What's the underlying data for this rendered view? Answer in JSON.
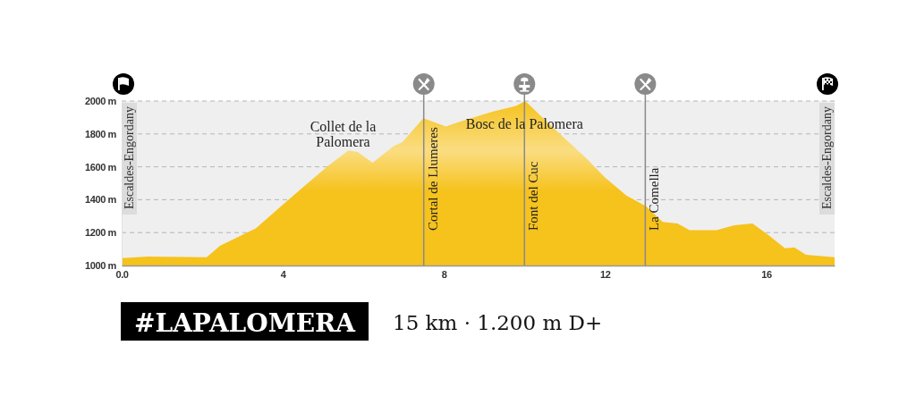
{
  "chart_data": {
    "type": "area",
    "x": [
      0,
      0.66,
      2.11,
      2.44,
      3.11,
      3.33,
      4.0,
      4.52,
      5.12,
      5.63,
      5.86,
      6.23,
      6.75,
      6.97,
      7.49,
      8.05,
      8.53,
      9.2,
      9.79,
      10.02,
      10.53,
      10.9,
      11.5,
      12.0,
      12.53,
      13.02,
      13.43,
      13.8,
      14.1,
      14.77,
      15.21,
      15.66,
      16.03,
      16.47,
      16.7,
      16.99,
      17.7
    ],
    "series": [
      {
        "color": "#f6c21c",
        "values": [
          1045,
          1055,
          1050,
          1120,
          1200,
          1225,
          1370,
          1480,
          1605,
          1700,
          1690,
          1625,
          1725,
          1750,
          1895,
          1845,
          1885,
          1935,
          1970,
          2000,
          1880,
          1795,
          1660,
          1535,
          1425,
          1360,
          1265,
          1255,
          1215,
          1215,
          1245,
          1255,
          1190,
          1105,
          1110,
          1065,
          1050
        ]
      }
    ],
    "xlim": [
      0,
      17.7
    ],
    "xticks": [
      {
        "value": 0,
        "label": "0.0"
      },
      4,
      8,
      12,
      16
    ],
    "ylim": [
      1000,
      2000
    ],
    "yticks": [
      {
        "value": 1000,
        "label": "1000 m"
      },
      {
        "value": 1200,
        "label": "1200 m"
      },
      {
        "value": 1400,
        "label": "1400 m"
      },
      {
        "value": 1600,
        "label": "1600 m"
      },
      {
        "value": 1800,
        "label": "1800 m"
      },
      {
        "value": 2000,
        "label": "2000 m"
      }
    ],
    "grid": "y",
    "ref_lines": [
      {
        "axis": "x",
        "value": 7.5,
        "label": "Cortal de Llumeres",
        "color": "#8a8a8a"
      },
      {
        "axis": "x",
        "value": 10,
        "label": "Font del Cuc",
        "color": "#8a8a8a"
      },
      {
        "axis": "x",
        "value": 13,
        "label": "La Comella",
        "color": "#8a8a8a"
      }
    ],
    "annotations": [
      "Escaldes-Engordany",
      "Escaldes-Engordany",
      {
        "text": "Collet de la Palomera",
        "x": 5.63,
        "y": 1700
      },
      {
        "text": "Bosc de la Palomera",
        "x": 10,
        "y": 2000
      },
      "#LAPALOMERA",
      "15 km · 1.200 m D+"
    ]
  }
}
